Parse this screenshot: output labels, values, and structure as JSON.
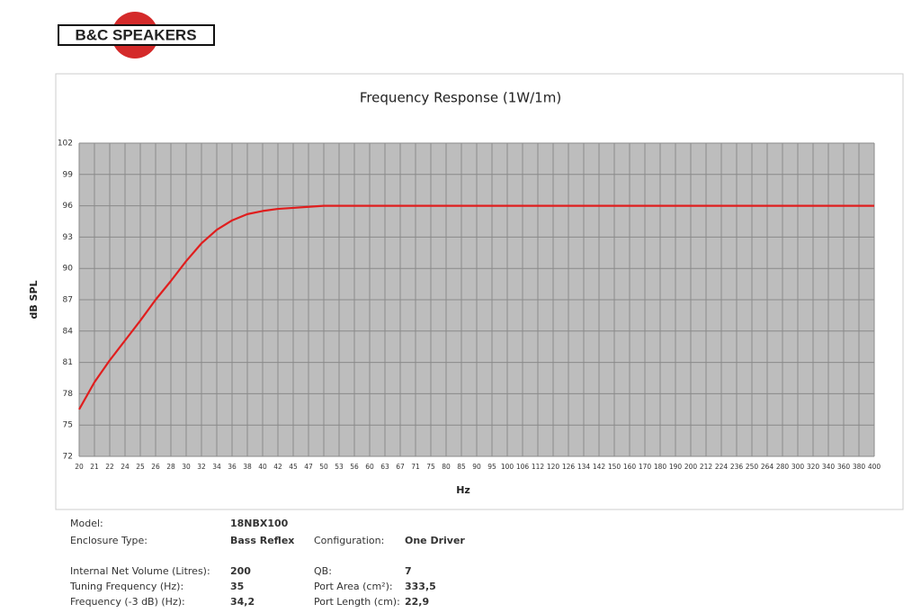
{
  "logo": "B&C SPEAKERS",
  "chart_data": {
    "type": "line",
    "title": "Frequency Response (1W/1m)",
    "x_label": "Hz",
    "y_label": "dB SPL",
    "categories": [
      20,
      21,
      22,
      24,
      25,
      26,
      28,
      30,
      32,
      34,
      36,
      38,
      40,
      42,
      45,
      47,
      50,
      53,
      56,
      60,
      63,
      67,
      71,
      75,
      80,
      85,
      90,
      95,
      100,
      106,
      112,
      120,
      126,
      134,
      142,
      150,
      160,
      170,
      180,
      190,
      200,
      212,
      224,
      236,
      250,
      264,
      280,
      300,
      320,
      340,
      360,
      380,
      400
    ],
    "series": [
      {
        "color": "#e01e1e",
        "values": [
          76.5,
          79.1,
          81.2,
          83.1,
          85.0,
          87.0,
          88.8,
          90.7,
          92.4,
          93.7,
          94.6,
          95.2,
          95.5,
          95.7,
          95.8,
          95.9,
          96,
          96,
          96,
          96,
          96,
          96,
          96,
          96,
          96,
          96,
          96,
          96,
          96,
          96,
          96,
          96,
          96,
          96,
          96,
          96,
          96,
          96,
          96,
          96,
          96,
          96,
          96,
          96,
          96,
          96,
          96,
          96,
          96,
          96,
          96,
          96,
          96
        ]
      }
    ],
    "ylim": [
      72,
      102
    ],
    "yticks": [
      72,
      75,
      78,
      81,
      84,
      87,
      90,
      93,
      96,
      99,
      102
    ],
    "grid": true
  },
  "specs": [
    [
      "Model:",
      "18NBX100"
    ],
    [
      "Enclosure Type:",
      "Bass Reflex",
      "Configuration:",
      "One Driver"
    ],
    [
      "Internal  Net Volume (Litres):",
      "200",
      "QB:",
      "7"
    ],
    [
      "Tuning Frequency (Hz):",
      "35",
      "Port Area (cm²):",
      "333,5"
    ],
    [
      "Frequency (-3 dB) (Hz):",
      "34,2",
      "Port Length (cm):",
      "22,9"
    ]
  ]
}
